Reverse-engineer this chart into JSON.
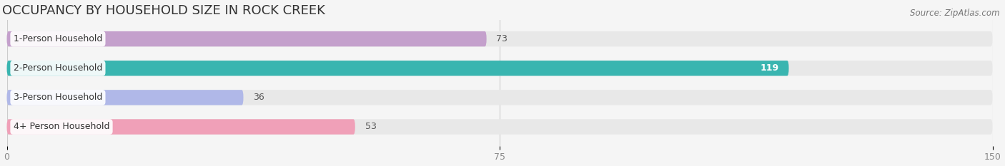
{
  "title": "OCCUPANCY BY HOUSEHOLD SIZE IN ROCK CREEK",
  "source": "Source: ZipAtlas.com",
  "categories": [
    "1-Person Household",
    "2-Person Household",
    "3-Person Household",
    "4+ Person Household"
  ],
  "values": [
    73,
    119,
    36,
    53
  ],
  "bar_colors": [
    "#c4a0cc",
    "#39b5b0",
    "#b0b8e8",
    "#f0a0b8"
  ],
  "value_colors": [
    "#555555",
    "#ffffff",
    "#555555",
    "#555555"
  ],
  "xlim": [
    -55,
    150
  ],
  "data_xlim": [
    0,
    150
  ],
  "xticks": [
    0,
    75,
    150
  ],
  "bar_height": 0.52,
  "background_color": "#f5f5f5",
  "bar_bg_color": "#e8e8e8",
  "label_bg_color": "#ffffff",
  "title_fontsize": 13,
  "label_fontsize": 9,
  "value_fontsize": 9,
  "tick_fontsize": 9,
  "source_fontsize": 8.5
}
